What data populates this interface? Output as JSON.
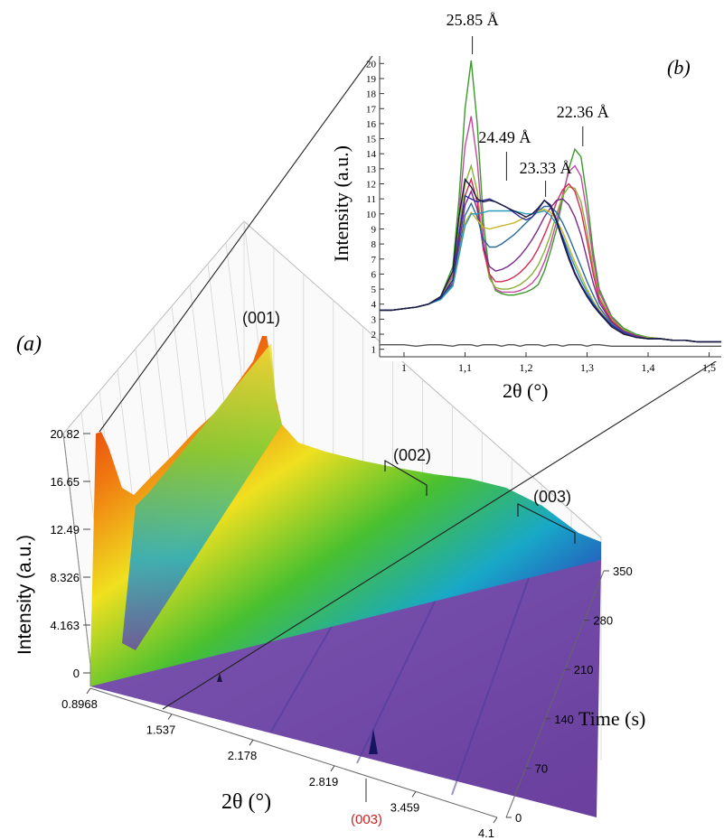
{
  "chart_data": [
    {
      "panel": "(a)",
      "type": "area",
      "xlabel": "2θ (°)",
      "ylabel": "Intensity (a.u.)",
      "zlabel": "Time (s)",
      "x_ticks": [
        "0.8968",
        "1.537",
        "2.178",
        "2.819",
        "3.459",
        "4.1"
      ],
      "y_ticks": [
        "0",
        "4.163",
        "8.326",
        "12.49",
        "16.65",
        "20.82"
      ],
      "z_ticks": [
        "0",
        "70",
        "140",
        "210",
        "280",
        "350"
      ],
      "xlim": [
        0.8968,
        4.1
      ],
      "ylim": [
        0,
        20.82
      ],
      "zlim": [
        0,
        350
      ],
      "annotations": [
        "(001)",
        "(002)",
        "(003)",
        "(003)"
      ],
      "annotation_colors": [
        "#111111",
        "#111111",
        "#111111",
        "#cc2222"
      ],
      "grid": true
    },
    {
      "panel": "(b)",
      "type": "line",
      "xlabel": "2θ (°)",
      "ylabel": "Intensity (a.u.)",
      "x_ticks": [
        "1",
        "1,1",
        "1,2",
        "1,3",
        "1,4",
        "1,5"
      ],
      "y_ticks": [
        "1",
        "2",
        "3",
        "4",
        "5",
        "6",
        "7",
        "8",
        "9",
        "10",
        "11",
        "12",
        "13",
        "14",
        "15",
        "16",
        "17",
        "18",
        "19",
        "20"
      ],
      "xlim": [
        0.96,
        1.52
      ],
      "ylim": [
        0.5,
        20.5
      ],
      "annotations": [
        "25.85 Å",
        "24.49 Å",
        "23.33 Å",
        "22.36 Å"
      ],
      "annotation_x": [
        1.112,
        1.168,
        1.232,
        1.293
      ],
      "x": [
        0.96,
        0.98,
        1.0,
        1.02,
        1.04,
        1.06,
        1.08,
        1.09,
        1.1,
        1.11,
        1.12,
        1.13,
        1.14,
        1.15,
        1.16,
        1.17,
        1.18,
        1.19,
        1.2,
        1.21,
        1.22,
        1.23,
        1.24,
        1.25,
        1.26,
        1.27,
        1.28,
        1.29,
        1.3,
        1.31,
        1.32,
        1.34,
        1.36,
        1.38,
        1.4,
        1.42,
        1.44,
        1.46,
        1.48,
        1.5,
        1.52
      ],
      "series": [
        {
          "color": "#3a9a2a",
          "values": [
            3.6,
            3.6,
            3.7,
            3.8,
            4.0,
            4.5,
            6.5,
            11.0,
            17.0,
            20.2,
            16.0,
            9.5,
            6.0,
            4.9,
            4.7,
            4.6,
            4.6,
            4.7,
            4.8,
            5.0,
            5.3,
            6.2,
            7.5,
            9.0,
            11.0,
            13.0,
            14.3,
            13.8,
            11.0,
            7.5,
            5.0,
            3.2,
            2.4,
            2.0,
            1.8,
            1.7,
            1.6,
            1.6,
            1.5,
            1.5,
            1.5
          ]
        },
        {
          "color": "#c04aa0",
          "values": [
            3.6,
            3.6,
            3.7,
            3.8,
            4.0,
            4.4,
            6.0,
            10.0,
            14.5,
            16.5,
            13.5,
            8.5,
            5.8,
            5.0,
            4.8,
            4.8,
            4.8,
            4.9,
            5.1,
            5.4,
            5.9,
            6.8,
            8.0,
            9.5,
            11.3,
            12.8,
            13.2,
            12.5,
            10.0,
            7.0,
            4.8,
            3.1,
            2.3,
            1.9,
            1.8,
            1.7,
            1.6,
            1.6,
            1.5,
            1.5,
            1.5
          ]
        },
        {
          "color": "#8ab034",
          "values": [
            3.6,
            3.6,
            3.7,
            3.8,
            4.0,
            4.4,
            5.8,
            9.0,
            12.0,
            13.2,
            11.5,
            7.8,
            5.7,
            5.1,
            5.0,
            5.0,
            5.1,
            5.3,
            5.6,
            6.0,
            6.6,
            7.5,
            8.6,
            10.0,
            11.2,
            11.8,
            11.7,
            10.8,
            8.8,
            6.4,
            4.5,
            3.0,
            2.3,
            1.9,
            1.8,
            1.7,
            1.6,
            1.6,
            1.5,
            1.5,
            1.5
          ]
        },
        {
          "color": "#d42a55",
          "values": [
            3.6,
            3.6,
            3.7,
            3.8,
            4.0,
            4.4,
            5.6,
            8.5,
            11.2,
            12.3,
            10.8,
            7.6,
            6.0,
            5.5,
            5.5,
            5.6,
            5.8,
            6.1,
            6.5,
            7.0,
            7.7,
            8.6,
            9.6,
            10.8,
            11.6,
            12.0,
            11.5,
            10.2,
            8.2,
            6.0,
            4.3,
            2.9,
            2.2,
            1.9,
            1.7,
            1.7,
            1.6,
            1.6,
            1.5,
            1.5,
            1.5
          ]
        },
        {
          "color": "#7a2a8a",
          "values": [
            3.6,
            3.6,
            3.7,
            3.8,
            4.0,
            4.4,
            5.4,
            8.0,
            10.6,
            11.5,
            10.3,
            7.8,
            6.5,
            6.2,
            6.3,
            6.5,
            6.8,
            7.2,
            7.7,
            8.3,
            9.0,
            9.8,
            10.4,
            10.9,
            11.0,
            10.6,
            9.8,
            8.6,
            7.0,
            5.4,
            4.1,
            2.8,
            2.2,
            1.9,
            1.7,
            1.7,
            1.6,
            1.6,
            1.5,
            1.5,
            1.5
          ]
        },
        {
          "color": "#2a6a9a",
          "values": [
            3.6,
            3.6,
            3.7,
            3.8,
            4.0,
            4.4,
            5.3,
            7.5,
            9.9,
            10.7,
            9.8,
            8.3,
            7.8,
            7.8,
            8.0,
            8.3,
            8.6,
            9.0,
            9.4,
            9.8,
            10.2,
            10.5,
            10.5,
            10.1,
            9.4,
            8.5,
            7.5,
            6.5,
            5.5,
            4.6,
            3.8,
            2.7,
            2.1,
            1.8,
            1.7,
            1.7,
            1.6,
            1.6,
            1.5,
            1.5,
            1.5
          ]
        },
        {
          "color": "#c8b428",
          "values": [
            3.6,
            3.6,
            3.7,
            3.8,
            4.0,
            4.3,
            5.2,
            7.3,
            9.4,
            10.1,
            9.6,
            9.1,
            9.0,
            9.1,
            9.2,
            9.3,
            9.4,
            9.6,
            9.8,
            10.0,
            10.2,
            10.3,
            10.1,
            9.6,
            8.8,
            7.8,
            6.8,
            5.9,
            5.0,
            4.2,
            3.6,
            2.6,
            2.1,
            1.8,
            1.7,
            1.7,
            1.6,
            1.6,
            1.5,
            1.5,
            1.5
          ]
        },
        {
          "color": "#2a9ab8",
          "values": [
            3.6,
            3.6,
            3.7,
            3.8,
            4.0,
            4.3,
            5.2,
            7.2,
            9.2,
            10.0,
            10.0,
            10.1,
            10.2,
            10.2,
            10.2,
            10.2,
            10.2,
            10.1,
            10.0,
            10.0,
            10.1,
            10.2,
            9.9,
            9.3,
            8.5,
            7.5,
            6.5,
            5.6,
            4.8,
            4.1,
            3.5,
            2.6,
            2.1,
            1.8,
            1.7,
            1.7,
            1.6,
            1.6,
            1.5,
            1.5,
            1.5
          ]
        },
        {
          "color": "#2a2a9a",
          "values": [
            3.6,
            3.6,
            3.7,
            3.8,
            4.0,
            4.4,
            5.6,
            8.6,
            11.2,
            11.0,
            10.8,
            10.9,
            11.0,
            10.8,
            10.6,
            10.4,
            10.1,
            9.8,
            9.6,
            9.8,
            10.3,
            10.9,
            10.6,
            9.6,
            8.4,
            7.2,
            6.1,
            5.3,
            4.6,
            4.0,
            3.5,
            2.6,
            2.1,
            1.8,
            1.7,
            1.7,
            1.6,
            1.6,
            1.5,
            1.5,
            1.5
          ]
        },
        {
          "color": "#1a1a40",
          "values": [
            3.6,
            3.6,
            3.7,
            3.8,
            4.0,
            4.5,
            6.2,
            9.8,
            12.3,
            11.8,
            11.0,
            10.8,
            10.9,
            10.8,
            10.6,
            10.4,
            10.2,
            10.0,
            9.8,
            10.0,
            10.4,
            10.9,
            10.5,
            9.5,
            8.2,
            7.0,
            6.0,
            5.2,
            4.5,
            3.9,
            3.4,
            2.5,
            2.0,
            1.8,
            1.7,
            1.7,
            1.6,
            1.6,
            1.5,
            1.5,
            1.5
          ]
        },
        {
          "color": "#555555",
          "values": [
            1.3,
            1.3,
            1.3,
            1.2,
            1.3,
            1.3,
            1.2,
            1.3,
            1.3,
            1.3,
            1.2,
            1.3,
            1.3,
            1.3,
            1.2,
            1.3,
            1.3,
            1.2,
            1.3,
            1.3,
            1.3,
            1.2,
            1.3,
            1.3,
            1.2,
            1.3,
            1.3,
            1.3,
            1.2,
            1.3,
            1.3,
            1.2,
            1.2,
            1.2,
            1.2,
            1.2,
            1.2,
            1.2,
            1.2,
            1.2,
            1.2
          ]
        }
      ]
    }
  ]
}
